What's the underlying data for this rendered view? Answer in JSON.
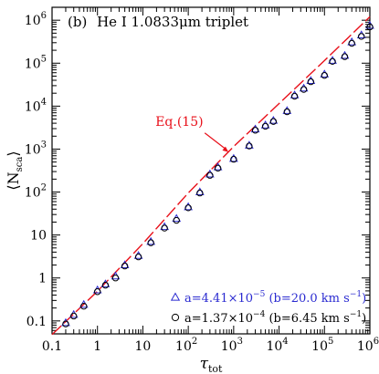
{
  "chart_data": {
    "type": "scatter",
    "panel_label": "(b)",
    "title": "He I 1.0833μm triplet",
    "xlabel": "τ",
    "xlabel_sub": "tot",
    "ylabel": "⟨N",
    "ylabel_sub": "sca",
    "ylabel_close": "⟩",
    "x_scale": "log",
    "y_scale": "log",
    "xlim": [
      0.1,
      1000000
    ],
    "ylim": [
      0.05,
      2000000
    ],
    "x_ticks": [
      {
        "v": 0.1,
        "label": "0.1",
        "sup": ""
      },
      {
        "v": 1,
        "label": "1",
        "sup": ""
      },
      {
        "v": 10,
        "label": "10",
        "sup": ""
      },
      {
        "v": 100,
        "label": "10",
        "sup": "2"
      },
      {
        "v": 1000,
        "label": "10",
        "sup": "3"
      },
      {
        "v": 10000,
        "label": "10",
        "sup": "4"
      },
      {
        "v": 100000,
        "label": "10",
        "sup": "5"
      },
      {
        "v": 1000000,
        "label": "10",
        "sup": "6"
      }
    ],
    "y_ticks": [
      {
        "v": 0.1,
        "label": "0.1",
        "sup": ""
      },
      {
        "v": 1,
        "label": "1",
        "sup": ""
      },
      {
        "v": 10,
        "label": "10",
        "sup": ""
      },
      {
        "v": 100,
        "label": "10",
        "sup": "2"
      },
      {
        "v": 1000,
        "label": "10",
        "sup": "3"
      },
      {
        "v": 10000,
        "label": "10",
        "sup": "4"
      },
      {
        "v": 100000,
        "label": "10",
        "sup": "5"
      },
      {
        "v": 1000000,
        "label": "10",
        "sup": "6"
      }
    ],
    "annotation": {
      "text": "Eq.(15)",
      "x": 770,
      "y": 850,
      "color": "#e8101a"
    },
    "model_line": {
      "color": "#e8101a",
      "dash": "dashed",
      "points": [
        [
          0.1,
          0.048
        ],
        [
          1,
          0.49
        ],
        [
          10,
          6.3
        ],
        [
          100,
          95
        ],
        [
          1000,
          1150
        ],
        [
          10000,
          11500
        ],
        [
          100000,
          115000
        ],
        [
          1000000,
          1200000
        ]
      ]
    },
    "series": [
      {
        "marker": "triangle",
        "color": "#2a2ad0",
        "legend_pre": "a=4.41×10",
        "legend_sup": "−5",
        "legend_post": " (b=20.0 km s",
        "legend_sup2": "−1",
        "legend_end": ")",
        "x": [
          0.2,
          0.3,
          0.5,
          1.0,
          1.5,
          2.5,
          4,
          8,
          15,
          30,
          55,
          100,
          180,
          300,
          450,
          1000,
          2200,
          3000,
          5000,
          7500,
          15000,
          22000,
          35000,
          50000,
          100000,
          150000,
          280000,
          400000,
          650000,
          1000000
        ],
        "y": [
          0.09,
          0.14,
          0.24,
          0.52,
          0.72,
          1.1,
          2.0,
          3.3,
          7.0,
          15.5,
          24,
          45,
          100,
          260,
          380,
          600,
          1220,
          2900,
          3600,
          4600,
          7800,
          18000,
          26000,
          39000,
          55000,
          115000,
          150000,
          310000,
          450000,
          750000
        ]
      },
      {
        "marker": "circle",
        "color": "#000000",
        "legend_pre": "a=1.37×10",
        "legend_sup": "−4",
        "legend_post": " (b=6.45 km s",
        "legend_sup2": "−1",
        "legend_end": ")",
        "x": [
          0.2,
          0.3,
          0.5,
          1.0,
          1.5,
          2.5,
          4,
          8,
          15,
          30,
          55,
          100,
          180,
          300,
          450,
          1000,
          2200,
          3000,
          5000,
          7500,
          15000,
          22000,
          35000,
          50000,
          100000,
          150000,
          280000,
          400000,
          650000,
          1000000
        ],
        "y": [
          0.085,
          0.13,
          0.22,
          0.48,
          0.68,
          1.0,
          1.9,
          3.1,
          6.6,
          14.5,
          22,
          43,
          95,
          245,
          360,
          580,
          1180,
          2750,
          3400,
          4400,
          7400,
          17000,
          24500,
          37000,
          52000,
          110000,
          142000,
          290000,
          420000,
          700000
        ]
      }
    ]
  }
}
